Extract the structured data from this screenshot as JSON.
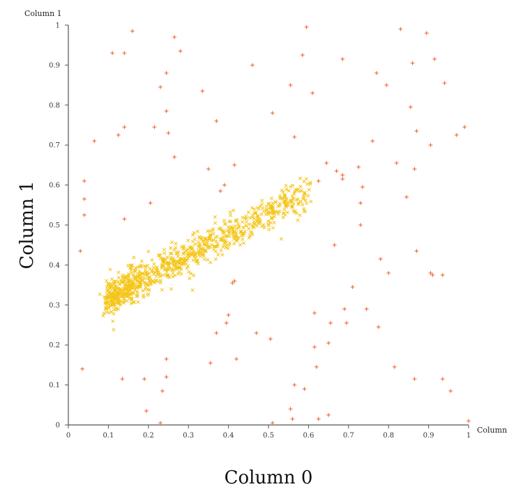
{
  "chart_data": {
    "type": "scatter",
    "xlabel": "Column 0",
    "ylabel": "Column 1",
    "y_axis_top_label": "Column 1",
    "x_axis_end_label": "Column",
    "xlim": [
      0,
      1
    ],
    "ylim": [
      0,
      1
    ],
    "xticks": [
      "0",
      "0.1",
      "0.2",
      "0.3",
      "0.4",
      "0.5",
      "0.6",
      "0.7",
      "0.8",
      "0.9",
      "1"
    ],
    "yticks": [
      "0",
      "0.1",
      "0.2",
      "0.3",
      "0.4",
      "0.5",
      "0.6",
      "0.7",
      "0.8",
      "0.9",
      "1"
    ],
    "grid": false,
    "series": [
      {
        "marker": "x",
        "color": "#f5c518",
        "cluster": {
          "count": 900,
          "x_range": [
            0.1,
            0.6
          ],
          "trend_start": [
            0.1,
            0.32
          ],
          "trend_end": [
            0.6,
            0.58
          ]
        }
      },
      {
        "marker": "+",
        "color": "#f06a2a",
        "points": [
          [
            0.035,
            0.14
          ],
          [
            0.03,
            0.435
          ],
          [
            0.04,
            0.525
          ],
          [
            0.04,
            0.565
          ],
          [
            0.04,
            0.61
          ],
          [
            0.065,
            0.71
          ],
          [
            0.11,
            0.93
          ],
          [
            0.125,
            0.725
          ],
          [
            0.14,
            0.93
          ],
          [
            0.14,
            0.745
          ],
          [
            0.14,
            0.515
          ],
          [
            0.135,
            0.115
          ],
          [
            0.16,
            0.985
          ],
          [
            0.19,
            0.115
          ],
          [
            0.195,
            0.035
          ],
          [
            0.205,
            0.555
          ],
          [
            0.215,
            0.745
          ],
          [
            0.23,
            0.845
          ],
          [
            0.23,
            0.005
          ],
          [
            0.235,
            0.085
          ],
          [
            0.245,
            0.88
          ],
          [
            0.245,
            0.785
          ],
          [
            0.25,
            0.73
          ],
          [
            0.245,
            0.165
          ],
          [
            0.245,
            0.12
          ],
          [
            0.265,
            0.97
          ],
          [
            0.265,
            0.67
          ],
          [
            0.28,
            0.935
          ],
          [
            0.335,
            0.835
          ],
          [
            0.35,
            0.64
          ],
          [
            0.355,
            0.155
          ],
          [
            0.37,
            0.76
          ],
          [
            0.37,
            0.23
          ],
          [
            0.38,
            0.585
          ],
          [
            0.39,
            0.6
          ],
          [
            0.395,
            0.255
          ],
          [
            0.4,
            0.275
          ],
          [
            0.41,
            0.355
          ],
          [
            0.415,
            0.65
          ],
          [
            0.415,
            0.36
          ],
          [
            0.42,
            0.165
          ],
          [
            0.46,
            0.9
          ],
          [
            0.47,
            0.23
          ],
          [
            0.505,
            0.215
          ],
          [
            0.51,
            0.78
          ],
          [
            0.51,
            0.005
          ],
          [
            0.555,
            0.85
          ],
          [
            0.555,
            0.04
          ],
          [
            0.565,
            0.72
          ],
          [
            0.565,
            0.1
          ],
          [
            0.56,
            0.015
          ],
          [
            0.585,
            0.925
          ],
          [
            0.59,
            0.09
          ],
          [
            0.595,
            0.995
          ],
          [
            0.61,
            0.83
          ],
          [
            0.615,
            0.195
          ],
          [
            0.615,
            0.28
          ],
          [
            0.62,
            0.145
          ],
          [
            0.625,
            0.015
          ],
          [
            0.625,
            0.61
          ],
          [
            0.645,
            0.655
          ],
          [
            0.65,
            0.205
          ],
          [
            0.65,
            0.025
          ],
          [
            0.655,
            0.255
          ],
          [
            0.665,
            0.45
          ],
          [
            0.67,
            0.635
          ],
          [
            0.685,
            0.625
          ],
          [
            0.685,
            0.615
          ],
          [
            0.685,
            0.915
          ],
          [
            0.69,
            0.29
          ],
          [
            0.695,
            0.255
          ],
          [
            0.71,
            0.345
          ],
          [
            0.725,
            0.645
          ],
          [
            0.73,
            0.555
          ],
          [
            0.73,
            0.5
          ],
          [
            0.735,
            0.595
          ],
          [
            0.745,
            0.29
          ],
          [
            0.76,
            0.71
          ],
          [
            0.77,
            0.88
          ],
          [
            0.775,
            0.245
          ],
          [
            0.78,
            0.415
          ],
          [
            0.795,
            0.85
          ],
          [
            0.8,
            0.38
          ],
          [
            0.815,
            0.145
          ],
          [
            0.82,
            0.655
          ],
          [
            0.83,
            0.99
          ],
          [
            0.845,
            0.57
          ],
          [
            0.855,
            0.795
          ],
          [
            0.86,
            0.905
          ],
          [
            0.865,
            0.64
          ],
          [
            0.865,
            0.115
          ],
          [
            0.87,
            0.735
          ],
          [
            0.87,
            0.435
          ],
          [
            0.895,
            0.98
          ],
          [
            0.905,
            0.7
          ],
          [
            0.905,
            0.38
          ],
          [
            0.91,
            0.375
          ],
          [
            0.915,
            0.915
          ],
          [
            0.935,
            0.375
          ],
          [
            0.935,
            0.115
          ],
          [
            0.94,
            0.855
          ],
          [
            0.955,
            0.085
          ],
          [
            0.97,
            0.725
          ],
          [
            0.99,
            0.745
          ],
          [
            1.0,
            0.01
          ]
        ]
      }
    ]
  }
}
